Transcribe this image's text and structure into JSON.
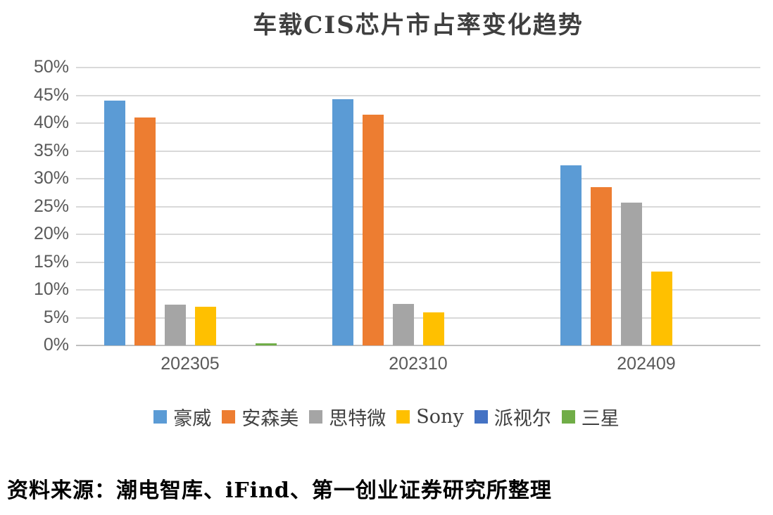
{
  "title": "车载CIS芯片市占率变化趋势",
  "source_note": "资料来源：潮电智库、iFind、第一创业证券研究所整理",
  "colors": {
    "gridline": "#d9d9d9",
    "axis_baseline": "#bfbfbf",
    "axis_text": "#595959",
    "title_text": "#3f3f3f",
    "source_text": "#000000"
  },
  "chart_data": {
    "type": "bar",
    "title": "车载CIS芯片市占率变化趋势",
    "categories": [
      "202305",
      "202310",
      "202409"
    ],
    "series": [
      {
        "name": "豪威",
        "color": "#5b9bd5",
        "values": [
          44.0,
          44.3,
          32.4
        ]
      },
      {
        "name": "安森美",
        "color": "#ed7d31",
        "values": [
          41.0,
          41.5,
          28.5
        ]
      },
      {
        "name": "思特微",
        "color": "#a5a5a5",
        "values": [
          7.3,
          7.5,
          25.7
        ]
      },
      {
        "name": "Sony",
        "color": "#ffc000",
        "values": [
          7.0,
          6.0,
          13.3
        ]
      },
      {
        "name": "派视尔",
        "color": "#4472c4",
        "values": [
          0,
          0,
          0
        ]
      },
      {
        "name": "三星",
        "color": "#70ad47",
        "values": [
          0.4,
          0,
          0
        ]
      }
    ],
    "xlabel": "",
    "ylabel": "",
    "ylim": [
      0,
      50
    ],
    "ytick_step": 5,
    "ytick_labels": [
      "0%",
      "5%",
      "10%",
      "15%",
      "20%",
      "25%",
      "30%",
      "35%",
      "40%",
      "45%",
      "50%"
    ],
    "grid": true,
    "legend_position": "bottom"
  }
}
